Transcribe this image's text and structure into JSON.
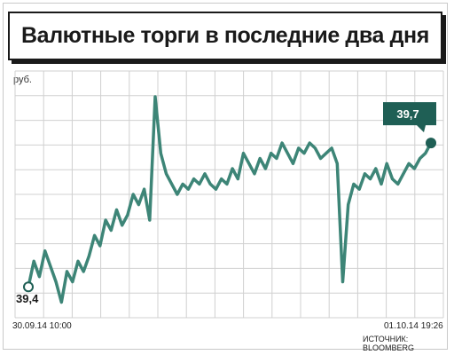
{
  "chart_data": {
    "type": "line",
    "title": "Валютные торги в последние два дня",
    "ylabel": "руб.",
    "x_start": "30.09.14 10:00",
    "x_end": "01.10.14 19:26",
    "start_label": "39,4",
    "end_label": "39,7",
    "source": "ИСТОЧНИК: BLOOMBERG",
    "grid": true,
    "line_color": "#3d8577",
    "label_color": "#1f5f55",
    "series": [
      {
        "values": [
          39.42,
          39.47,
          39.44,
          39.49,
          39.46,
          39.43,
          39.39,
          39.45,
          39.43,
          39.47,
          39.45,
          39.48,
          39.52,
          39.5,
          39.55,
          39.53,
          39.57,
          39.54,
          39.56,
          39.6,
          39.58,
          39.61,
          39.55,
          39.79,
          39.68,
          39.64,
          39.62,
          39.6,
          39.62,
          39.61,
          39.63,
          39.62,
          39.64,
          39.62,
          39.61,
          39.63,
          39.62,
          39.65,
          39.63,
          39.68,
          39.66,
          39.64,
          39.67,
          39.65,
          39.68,
          39.67,
          39.7,
          39.68,
          39.66,
          39.69,
          39.68,
          39.7,
          39.69,
          39.67,
          39.68,
          39.69,
          39.66,
          39.43,
          39.58,
          39.62,
          39.61,
          39.64,
          39.63,
          39.65,
          39.62,
          39.66,
          39.63,
          39.62,
          39.64,
          39.66,
          39.65,
          39.67,
          39.68,
          39.7
        ]
      }
    ]
  }
}
